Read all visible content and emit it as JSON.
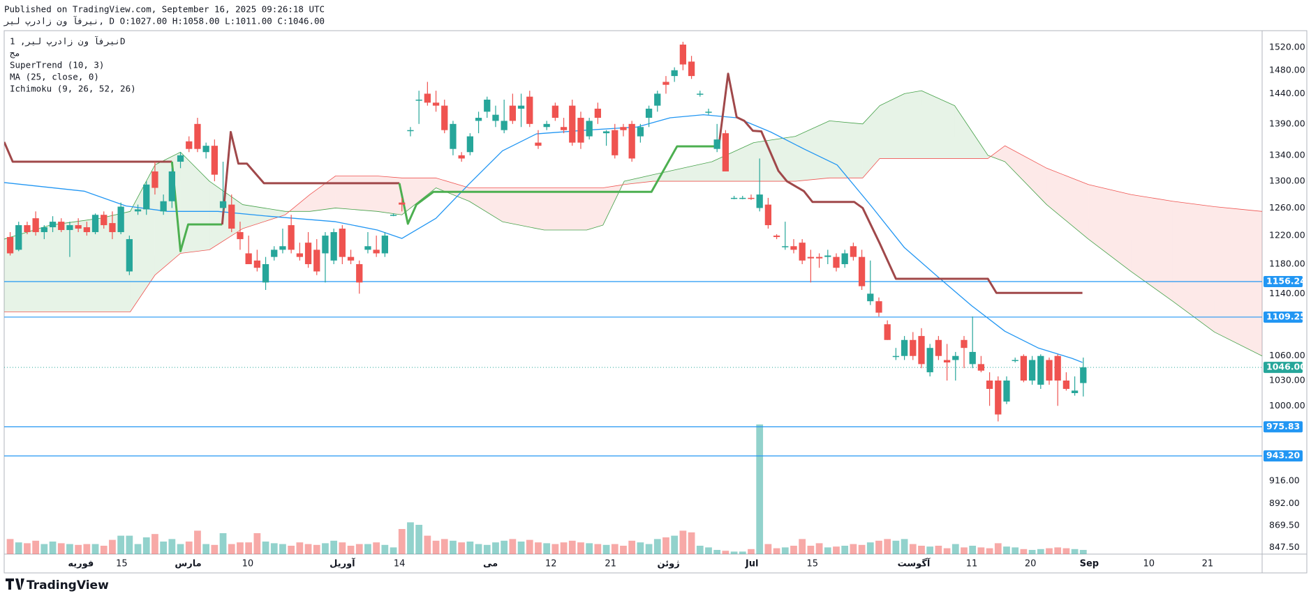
{
  "header": {
    "published": "Published on TradingView.com, September 16, 2025 09:26:18 UTC",
    "ohlc_line": "نیرفآ ون زادرپ لیر, D O:1027.00 H:1058.00 L:1011.00 C:1046.00"
  },
  "chart_data": {
    "type": "candlestick",
    "legend": [
      "نیرفآ ون زادرپ لیر, 1D",
      "مج",
      "SuperTrend (10, 3)",
      "MA (25, close, 0)",
      "Ichimoku (9, 26, 52, 26)"
    ],
    "log_scale": true,
    "grid": false,
    "up_color": "#26a69a",
    "down_color": "#ef5350",
    "xlim": [
      -0.7,
      147
    ],
    "xticks": [
      {
        "value": 8.3,
        "label": "فوریه"
      },
      {
        "value": 13.1,
        "label": "15"
      },
      {
        "value": 20.9,
        "label": "مارس"
      },
      {
        "value": 27.9,
        "label": "10"
      },
      {
        "value": 39.0,
        "label": "آوریل"
      },
      {
        "value": 45.7,
        "label": "14"
      },
      {
        "value": 56.4,
        "label": "می"
      },
      {
        "value": 63.5,
        "label": "12"
      },
      {
        "value": 70.5,
        "label": "21"
      },
      {
        "value": 77.3,
        "label": "ژوئن"
      },
      {
        "value": 87.1,
        "label": "Jul"
      },
      {
        "value": 94.2,
        "label": "15"
      },
      {
        "value": 106.1,
        "label": "آگوست"
      },
      {
        "value": 112.9,
        "label": "11"
      },
      {
        "value": 119.8,
        "label": "20"
      },
      {
        "value": 126.7,
        "label": "Sep"
      },
      {
        "value": 133.7,
        "label": "10"
      },
      {
        "value": 140.6,
        "label": "21"
      }
    ],
    "ylim": [
      841,
      1550
    ],
    "yticks": [
      {
        "value": 847.5,
        "label": "847.50"
      },
      {
        "value": 869.5,
        "label": "869.50"
      },
      {
        "value": 892,
        "label": "892.00"
      },
      {
        "value": 916,
        "label": "916.00"
      },
      {
        "value": 1000,
        "label": "1000.00"
      },
      {
        "value": 1030,
        "label": "1030.00"
      },
      {
        "value": 1060,
        "label": "1060.00"
      },
      {
        "value": 1140,
        "label": "1140.00"
      },
      {
        "value": 1180,
        "label": "1180.00"
      },
      {
        "value": 1220,
        "label": "1220.00"
      },
      {
        "value": 1260,
        "label": "1260.00"
      },
      {
        "value": 1300,
        "label": "1300.00"
      },
      {
        "value": 1340,
        "label": "1340.00"
      },
      {
        "value": 1390,
        "label": "1390.00"
      },
      {
        "value": 1440,
        "label": "1440.00"
      },
      {
        "value": 1480,
        "label": "1480.00"
      },
      {
        "value": 1520,
        "label": "1520.00"
      }
    ],
    "ohlc": [
      [
        1218,
        1225,
        1192,
        1195
      ],
      [
        1200,
        1240,
        1198,
        1235
      ],
      [
        1235,
        1240,
        1222,
        1225
      ],
      [
        1245,
        1255,
        1220,
        1225
      ],
      [
        1225,
        1235,
        1215,
        1232
      ],
      [
        1232,
        1248,
        1225,
        1240
      ],
      [
        1240,
        1245,
        1225,
        1228
      ],
      [
        1228,
        1240,
        1190,
        1235
      ],
      [
        1235,
        1245,
        1225,
        1230
      ],
      [
        1232,
        1240,
        1220,
        1225
      ],
      [
        1225,
        1252,
        1222,
        1250
      ],
      [
        1250,
        1255,
        1230,
        1235
      ],
      [
        1238,
        1255,
        1215,
        1225
      ],
      [
        1225,
        1268,
        1222,
        1262
      ],
      [
        1170,
        1220,
        1165,
        1215
      ],
      [
        1255,
        1265,
        1250,
        1258
      ],
      [
        1258,
        1300,
        1250,
        1295
      ],
      [
        1315,
        1330,
        1280,
        1290
      ],
      [
        1255,
        1280,
        1250,
        1270
      ],
      [
        1270,
        1320,
        1260,
        1315
      ],
      [
        1330,
        1345,
        1320,
        1340
      ],
      [
        1362,
        1370,
        1345,
        1350
      ],
      [
        1390,
        1400,
        1345,
        1350
      ],
      [
        1345,
        1360,
        1335,
        1355
      ],
      [
        1355,
        1365,
        1300,
        1310
      ],
      [
        1260,
        1330,
        1255,
        1270
      ],
      [
        1265,
        1280,
        1225,
        1230
      ],
      [
        1225,
        1240,
        1200,
        1215
      ],
      [
        1195,
        1220,
        1180,
        1180
      ],
      [
        1185,
        1200,
        1170,
        1175
      ],
      [
        1155,
        1190,
        1145,
        1180
      ],
      [
        1190,
        1205,
        1185,
        1200
      ],
      [
        1200,
        1230,
        1195,
        1205
      ],
      [
        1235,
        1250,
        1195,
        1200
      ],
      [
        1195,
        1210,
        1185,
        1190
      ],
      [
        1210,
        1225,
        1175,
        1180
      ],
      [
        1200,
        1215,
        1165,
        1170
      ],
      [
        1195,
        1225,
        1155,
        1220
      ],
      [
        1185,
        1230,
        1180,
        1225
      ],
      [
        1230,
        1235,
        1180,
        1190
      ],
      [
        1190,
        1200,
        1180,
        1185
      ],
      [
        1180,
        1185,
        1140,
        1155
      ],
      [
        1200,
        1225,
        1195,
        1205
      ],
      [
        1200,
        1220,
        1190,
        1195
      ],
      [
        1195,
        1225,
        1190,
        1220
      ],
      [
        1250,
        1252,
        1248,
        1250
      ],
      [
        1268,
        1275,
        1255,
        1265
      ],
      [
        1380,
        1385,
        1370,
        1380
      ],
      [
        1430,
        1445,
        1390,
        1430
      ],
      [
        1440,
        1460,
        1420,
        1425
      ],
      [
        1425,
        1445,
        1410,
        1420
      ],
      [
        1420,
        1430,
        1375,
        1380
      ],
      [
        1350,
        1395,
        1340,
        1390
      ],
      [
        1340,
        1345,
        1330,
        1335
      ],
      [
        1345,
        1375,
        1340,
        1370
      ],
      [
        1395,
        1410,
        1375,
        1400
      ],
      [
        1410,
        1435,
        1400,
        1430
      ],
      [
        1395,
        1420,
        1385,
        1405
      ],
      [
        1380,
        1430,
        1375,
        1395
      ],
      [
        1420,
        1440,
        1390,
        1395
      ],
      [
        1415,
        1440,
        1385,
        1420
      ],
      [
        1435,
        1445,
        1385,
        1390
      ],
      [
        1360,
        1380,
        1350,
        1355
      ],
      [
        1385,
        1395,
        1380,
        1390
      ],
      [
        1420,
        1425,
        1395,
        1400
      ],
      [
        1385,
        1400,
        1375,
        1380
      ],
      [
        1420,
        1430,
        1355,
        1360
      ],
      [
        1400,
        1410,
        1350,
        1360
      ],
      [
        1370,
        1400,
        1365,
        1395
      ],
      [
        1415,
        1425,
        1390,
        1400
      ],
      [
        1375,
        1380,
        1355,
        1378
      ],
      [
        1380,
        1390,
        1335,
        1340
      ],
      [
        1385,
        1390,
        1370,
        1380
      ],
      [
        1390,
        1395,
        1330,
        1335
      ],
      [
        1370,
        1390,
        1360,
        1385
      ],
      [
        1400,
        1420,
        1385,
        1415
      ],
      [
        1420,
        1445,
        1410,
        1440
      ],
      [
        1460,
        1470,
        1440,
        1455
      ],
      [
        1470,
        1485,
        1460,
        1480
      ],
      [
        1525,
        1530,
        1480,
        1490
      ],
      [
        1495,
        1505,
        1465,
        1470
      ],
      [
        1440,
        1445,
        1435,
        1440
      ],
      [
        1410,
        1415,
        1405,
        1410
      ],
      [
        1350,
        1390,
        1345,
        1365
      ],
      [
        1375,
        1380,
        1315,
        1315
      ],
      [
        1275,
        1278,
        1273,
        1275
      ],
      [
        1275,
        1278,
        1273,
        1275
      ],
      [
        1275,
        1280,
        1272,
        1274
      ],
      [
        1260,
        1335,
        1255,
        1280
      ],
      [
        1265,
        1275,
        1230,
        1235
      ],
      [
        1220,
        1222,
        1215,
        1218
      ],
      [
        1205,
        1240,
        1200,
        1205
      ],
      [
        1205,
        1215,
        1195,
        1200
      ],
      [
        1210,
        1215,
        1180,
        1185
      ],
      [
        1190,
        1200,
        1155,
        1188
      ],
      [
        1190,
        1195,
        1175,
        1188
      ],
      [
        1190,
        1200,
        1180,
        1192
      ],
      [
        1190,
        1195,
        1170,
        1175
      ],
      [
        1180,
        1200,
        1175,
        1195
      ],
      [
        1205,
        1210,
        1185,
        1190
      ],
      [
        1190,
        1200,
        1145,
        1150
      ],
      [
        1130,
        1185,
        1125,
        1140
      ],
      [
        1130,
        1135,
        1110,
        1115
      ],
      [
        1100,
        1105,
        1080,
        1080
      ],
      [
        1060,
        1070,
        1055,
        1060
      ],
      [
        1060,
        1085,
        1055,
        1080
      ],
      [
        1080,
        1090,
        1055,
        1060
      ],
      [
        1085,
        1095,
        1045,
        1050
      ],
      [
        1040,
        1075,
        1035,
        1070
      ],
      [
        1080,
        1085,
        1055,
        1060
      ],
      [
        1055,
        1075,
        1030,
        1052
      ],
      [
        1055,
        1065,
        1030,
        1060
      ],
      [
        1080,
        1085,
        1045,
        1070
      ],
      [
        1050,
        1110,
        1045,
        1065
      ],
      [
        1050,
        1060,
        1040,
        1042
      ],
      [
        1030,
        1040,
        1000,
        1020
      ],
      [
        1030,
        1035,
        982,
        990
      ],
      [
        1005,
        1035,
        1002,
        1030
      ],
      [
        1055,
        1058,
        1052,
        1055
      ],
      [
        1060,
        1062,
        1028,
        1030
      ],
      [
        1030,
        1060,
        1025,
        1055
      ],
      [
        1025,
        1062,
        1020,
        1060
      ],
      [
        1055,
        1058,
        1025,
        1030
      ],
      [
        1060,
        1062,
        1000,
        1030
      ],
      [
        1030,
        1040,
        1018,
        1020
      ],
      [
        1015,
        1035,
        1012,
        1018
      ],
      [
        1027,
        1058,
        1011,
        1046
      ]
    ],
    "volume": [
      18,
      14,
      13,
      16,
      12,
      15,
      13,
      12,
      11,
      12,
      12,
      10,
      17,
      22,
      22,
      12,
      20,
      24,
      15,
      18,
      12,
      15,
      28,
      12,
      11,
      25,
      12,
      14,
      14,
      25,
      15,
      13,
      12,
      10,
      14,
      12,
      11,
      13,
      16,
      14,
      10,
      12,
      12,
      14,
      11,
      8,
      30,
      38,
      35,
      22,
      16,
      18,
      16,
      14,
      15,
      12,
      11,
      14,
      16,
      18,
      15,
      17,
      14,
      13,
      12,
      14,
      16,
      14,
      13,
      12,
      11,
      12,
      10,
      16,
      14,
      12,
      18,
      20,
      22,
      28,
      26,
      10,
      8,
      5,
      4,
      3,
      3,
      6,
      155,
      12,
      7,
      8,
      10,
      18,
      10,
      13,
      8,
      9,
      10,
      12,
      11,
      14,
      16,
      18,
      16,
      18,
      12,
      10,
      9,
      10,
      7,
      12,
      8,
      10,
      8,
      7,
      13,
      9,
      8,
      6,
      5,
      6,
      7,
      8,
      7,
      6,
      5
    ],
    "vlim": [
      0,
      160
    ],
    "ma": {
      "color": "#2196f3",
      "x": [
        -0.7,
        8.7,
        13.6,
        18.5,
        24.4,
        30.3,
        38.2,
        43.1,
        46.0,
        50.0,
        53.9,
        57.8,
        61.8,
        67.7,
        73.6,
        77.5,
        81.4,
        85.3,
        89.3,
        93.2,
        97.1,
        101.1,
        105.0,
        108.9,
        112.9,
        116.8,
        120.7,
        124.7,
        125.9
      ],
      "values": [
        1298,
        1285,
        1263,
        1255,
        1255,
        1248,
        1240,
        1228,
        1216,
        1245,
        1296,
        1347,
        1374,
        1380,
        1385,
        1400,
        1405,
        1400,
        1377,
        1350,
        1325,
        1263,
        1203,
        1163,
        1124,
        1091,
        1070,
        1057,
        1052
      ]
    },
    "supertrend": [
      {
        "color": "#a0484a",
        "x": [
          -0.7,
          0.3,
          19.0
        ],
        "values": [
          1361,
          1330,
          1330
        ]
      },
      {
        "color": "#4caf50",
        "x": [
          19.0,
          20.0,
          20.9,
          24.9
        ],
        "values": [
          1330,
          1198,
          1236,
          1236
        ]
      },
      {
        "color": "#a0484a",
        "x": [
          24.9,
          25.9,
          26.8,
          27.8,
          29.8,
          45.7
        ],
        "values": [
          1236,
          1377,
          1327,
          1327,
          1297,
          1297
        ]
      },
      {
        "color": "#4caf50",
        "x": [
          45.7,
          46.7,
          47.7,
          49.7,
          75.3,
          78.3,
          83.2
        ],
        "values": [
          1297,
          1237,
          1265,
          1284,
          1284,
          1354,
          1354
        ]
      },
      {
        "color": "#a0484a",
        "x": [
          83.2,
          84.3,
          85.3,
          86.2,
          87.2,
          88.2,
          90.2,
          91.2,
          93.2,
          94.2,
          99.1,
          100.1,
          102.1,
          104.0,
          114.8,
          115.8,
          125.9
        ],
        "values": [
          1354,
          1474,
          1401,
          1395,
          1379,
          1378,
          1316,
          1300,
          1285,
          1269,
          1269,
          1260,
          1209,
          1160,
          1160,
          1141,
          1141
        ]
      }
    ],
    "ichimoku": {
      "up_fill": "#43a047",
      "down_fill": "#ef5350",
      "x": [
        -0.7,
        4.7,
        10.6,
        14.1,
        17.0,
        20.0,
        23.4,
        27.3,
        32.3,
        35.2,
        38.2,
        43.1,
        46.0,
        50.0,
        53.9,
        57.8,
        62.7,
        67.7,
        69.6,
        72.1,
        75.5,
        82.4,
        87.3,
        92.2,
        96.2,
        100.1,
        102.1,
        105.0,
        107.0,
        110.9,
        114.8,
        116.8,
        121.7,
        126.6,
        131.6,
        136.5,
        141.4,
        147.0
      ],
      "span_a": [
        1215,
        1235,
        1245,
        1255,
        1325,
        1345,
        1300,
        1265,
        1255,
        1255,
        1260,
        1255,
        1250,
        1290,
        1270,
        1240,
        1228,
        1228,
        1235,
        1300,
        1310,
        1330,
        1360,
        1370,
        1395,
        1390,
        1420,
        1440,
        1445,
        1420,
        1340,
        1330,
        1265,
        1215,
        1170,
        1130,
        1090,
        1060
      ],
      "span_b": [
        1116,
        1116,
        1116,
        1116,
        1165,
        1195,
        1200,
        1230,
        1250,
        1280,
        1308,
        1308,
        1305,
        1305,
        1290,
        1290,
        1290,
        1290,
        1290,
        1295,
        1300,
        1300,
        1300,
        1300,
        1305,
        1305,
        1335,
        1335,
        1335,
        1335,
        1335,
        1355,
        1320,
        1295,
        1280,
        1270,
        1262,
        1255
      ]
    },
    "levels": [
      1156.24,
      1109.25,
      975.83,
      {
        "value": 943.2,
        "label": "943.20"
      }
    ],
    "level_color": "#2196f3",
    "last_price": {
      "value": 1046,
      "label": "1046.00"
    },
    "last_color": "#26a69a"
  },
  "footer": {
    "logo": "TradingView"
  }
}
